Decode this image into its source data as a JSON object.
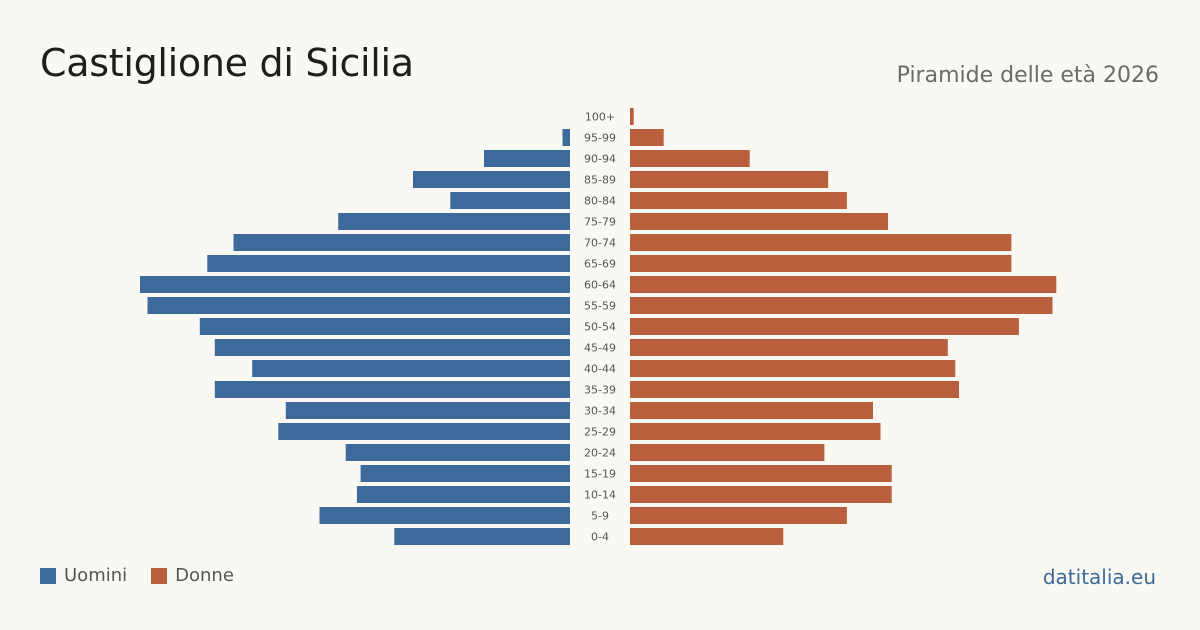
{
  "header": {
    "title": "Castiglione di Sicilia",
    "subtitle": "Piramide delle età 2026"
  },
  "legend": {
    "men_label": "Uomini",
    "women_label": "Donne"
  },
  "footer": {
    "brand": "datitalia.eu"
  },
  "colors": {
    "men": "#3c6a9a",
    "women": "#b95f3c"
  },
  "chart_data": {
    "type": "bar",
    "orientation": "horizontal-pyramid",
    "categories": [
      "100+",
      "95-99",
      "90-94",
      "85-89",
      "80-84",
      "75-79",
      "70-74",
      "65-69",
      "60-64",
      "55-59",
      "50-54",
      "45-49",
      "40-44",
      "35-39",
      "30-34",
      "25-29",
      "20-24",
      "15-19",
      "10-14",
      "5-9",
      "0-4"
    ],
    "series": [
      {
        "name": "Uomini",
        "values": [
          0,
          2,
          23,
          42,
          32,
          62,
          90,
          97,
          115,
          113,
          99,
          95,
          85,
          95,
          76,
          78,
          60,
          56,
          57,
          67,
          47
        ]
      },
      {
        "name": "Donne",
        "values": [
          1,
          9,
          32,
          53,
          58,
          69,
          102,
          102,
          114,
          113,
          104,
          85,
          87,
          88,
          65,
          67,
          52,
          70,
          70,
          58,
          41
        ]
      }
    ],
    "xlim": [
      0,
      115
    ]
  }
}
